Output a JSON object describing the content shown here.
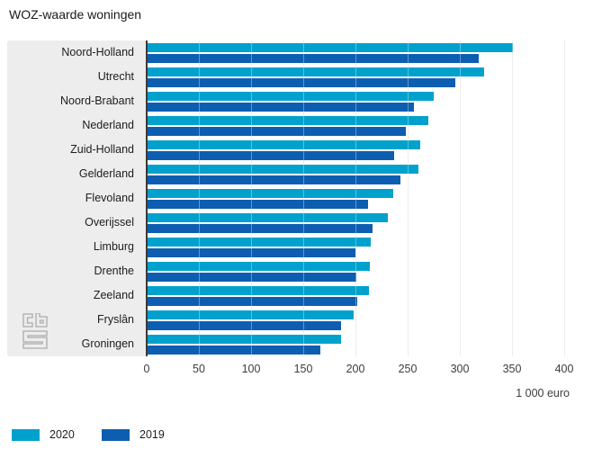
{
  "title": "WOZ-waarde woningen",
  "chart_data": {
    "type": "bar",
    "orientation": "horizontal",
    "title": "WOZ-waarde woningen",
    "xlabel": "1 000 euro",
    "xlim": [
      0,
      400
    ],
    "xticks": [
      0,
      50,
      100,
      150,
      200,
      250,
      300,
      350,
      400
    ],
    "grid": true,
    "legend_position": "bottom-left",
    "categories": [
      "Noord-Holland",
      "Utrecht",
      "Noord-Brabant",
      "Nederland",
      "Zuid-Holland",
      "Gelderland",
      "Flevoland",
      "Overijssel",
      "Limburg",
      "Drenthe",
      "Zeeland",
      "Fryslân",
      "Groningen"
    ],
    "series": [
      {
        "name": "2020",
        "color": "#00a1cd",
        "values": [
          351,
          323,
          275,
          270,
          262,
          260,
          236,
          231,
          215,
          214,
          213,
          198,
          186
        ]
      },
      {
        "name": "2019",
        "color": "#0d5eb1",
        "values": [
          318,
          296,
          256,
          248,
          237,
          243,
          212,
          216,
          200,
          201,
          202,
          186,
          166
        ]
      }
    ]
  },
  "logo": {
    "name": "cbs-logo"
  },
  "colors": {
    "series_2020": "#00a1cd",
    "series_2019": "#0d5eb1",
    "label_panel": "#ededed",
    "gridline": "#e3e3e3",
    "axis_line": "#3a3a3a",
    "text": "#1d1d1d"
  }
}
